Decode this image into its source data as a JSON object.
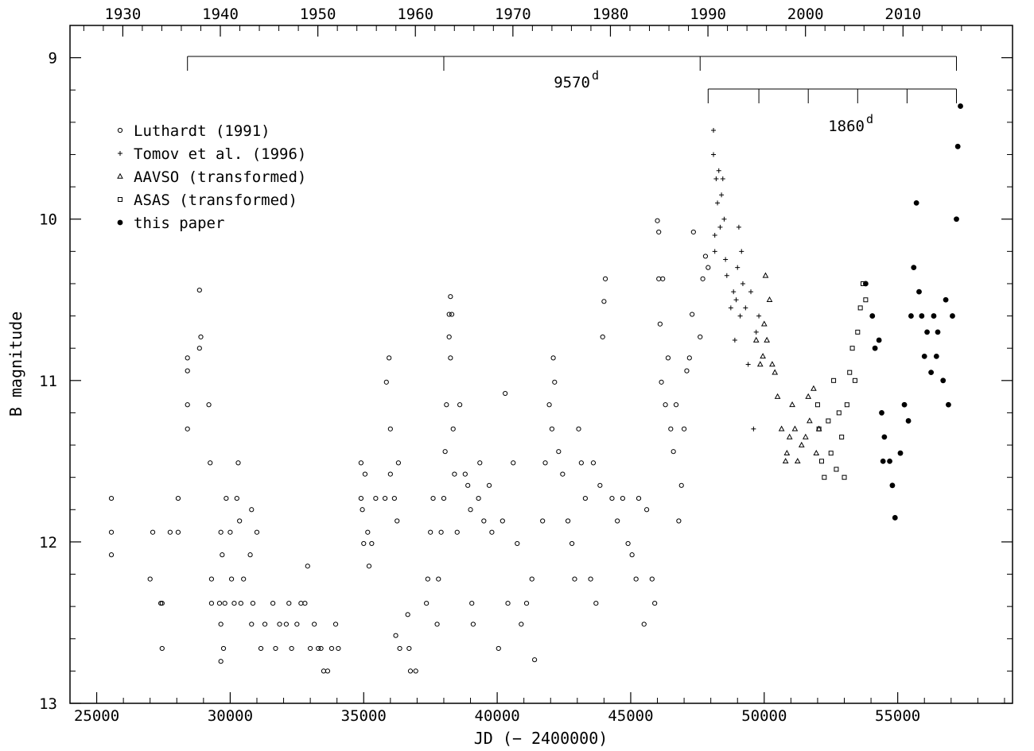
{
  "chart_data": {
    "type": "scatter",
    "xlabel": "JD (− 2400000)",
    "ylabel": "B magnitude",
    "xlim": [
      24000,
      59300
    ],
    "ylim": [
      8.8,
      13.0
    ],
    "y_inverted": true,
    "x_ticks_bottom": [
      25000,
      30000,
      35000,
      40000,
      45000,
      50000,
      55000
    ],
    "x_ticks_top_years": [
      1930,
      1940,
      1950,
      1960,
      1970,
      1980,
      1990,
      2000,
      2010
    ],
    "y_ticks": [
      9,
      10,
      11,
      12,
      13
    ],
    "legend_position": "top-left",
    "series": [
      {
        "name": "Luthardt (1991)",
        "marker": "open-circle",
        "points": [
          [
            25550,
            11.73
          ],
          [
            25550,
            11.94
          ],
          [
            25550,
            12.08
          ],
          [
            27000,
            12.23
          ],
          [
            27100,
            11.94
          ],
          [
            27400,
            12.38
          ],
          [
            27450,
            12.66
          ],
          [
            27450,
            12.38
          ],
          [
            27750,
            11.94
          ],
          [
            28050,
            11.73
          ],
          [
            28050,
            11.94
          ],
          [
            28400,
            10.86
          ],
          [
            28400,
            10.94
          ],
          [
            28400,
            11.15
          ],
          [
            28400,
            11.3
          ],
          [
            28850,
            10.44
          ],
          [
            28850,
            10.8
          ],
          [
            28900,
            10.73
          ],
          [
            29200,
            11.15
          ],
          [
            29250,
            11.51
          ],
          [
            29300,
            12.23
          ],
          [
            29300,
            12.38
          ],
          [
            29600,
            12.38
          ],
          [
            29650,
            12.51
          ],
          [
            29650,
            12.74
          ],
          [
            29650,
            11.94
          ],
          [
            29700,
            12.08
          ],
          [
            29750,
            12.66
          ],
          [
            29800,
            12.38
          ],
          [
            29850,
            11.73
          ],
          [
            30000,
            11.94
          ],
          [
            30050,
            12.23
          ],
          [
            30150,
            12.38
          ],
          [
            30250,
            11.73
          ],
          [
            30300,
            11.51
          ],
          [
            30350,
            11.87
          ],
          [
            30400,
            12.38
          ],
          [
            30500,
            12.23
          ],
          [
            30750,
            12.08
          ],
          [
            30800,
            11.8
          ],
          [
            30800,
            12.51
          ],
          [
            30850,
            12.38
          ],
          [
            31000,
            11.94
          ],
          [
            31150,
            12.66
          ],
          [
            31300,
            12.51
          ],
          [
            31600,
            12.38
          ],
          [
            31700,
            12.66
          ],
          [
            31850,
            12.51
          ],
          [
            32100,
            12.51
          ],
          [
            32200,
            12.38
          ],
          [
            32300,
            12.66
          ],
          [
            32500,
            12.51
          ],
          [
            32650,
            12.38
          ],
          [
            32800,
            12.38
          ],
          [
            32900,
            12.15
          ],
          [
            33000,
            12.66
          ],
          [
            33150,
            12.51
          ],
          [
            33300,
            12.66
          ],
          [
            33400,
            12.66
          ],
          [
            33500,
            12.8
          ],
          [
            33650,
            12.8
          ],
          [
            33800,
            12.66
          ],
          [
            33950,
            12.51
          ],
          [
            34050,
            12.66
          ],
          [
            34900,
            11.51
          ],
          [
            34900,
            11.73
          ],
          [
            34950,
            11.8
          ],
          [
            35000,
            12.01
          ],
          [
            35050,
            11.58
          ],
          [
            35150,
            11.94
          ],
          [
            35200,
            12.15
          ],
          [
            35300,
            12.01
          ],
          [
            35450,
            11.73
          ],
          [
            35800,
            11.73
          ],
          [
            35850,
            11.01
          ],
          [
            35950,
            10.86
          ],
          [
            36000,
            11.3
          ],
          [
            36000,
            11.58
          ],
          [
            36150,
            11.73
          ],
          [
            36200,
            12.58
          ],
          [
            36250,
            11.87
          ],
          [
            36300,
            11.51
          ],
          [
            36350,
            12.66
          ],
          [
            36650,
            12.45
          ],
          [
            36700,
            12.66
          ],
          [
            36750,
            12.8
          ],
          [
            36950,
            12.8
          ],
          [
            37350,
            12.38
          ],
          [
            37400,
            12.23
          ],
          [
            37500,
            11.94
          ],
          [
            37600,
            11.73
          ],
          [
            37750,
            12.51
          ],
          [
            37800,
            12.23
          ],
          [
            37900,
            11.94
          ],
          [
            38000,
            11.73
          ],
          [
            38050,
            11.44
          ],
          [
            38100,
            11.15
          ],
          [
            38200,
            10.59
          ],
          [
            38200,
            10.73
          ],
          [
            38250,
            10.48
          ],
          [
            38250,
            10.86
          ],
          [
            38300,
            10.59
          ],
          [
            38350,
            11.3
          ],
          [
            38400,
            11.58
          ],
          [
            38500,
            11.94
          ],
          [
            38600,
            11.15
          ],
          [
            38800,
            11.58
          ],
          [
            38900,
            11.65
          ],
          [
            39000,
            11.8
          ],
          [
            39050,
            12.38
          ],
          [
            39100,
            12.51
          ],
          [
            39300,
            11.73
          ],
          [
            39350,
            11.51
          ],
          [
            39500,
            11.87
          ],
          [
            39700,
            11.65
          ],
          [
            39800,
            11.94
          ],
          [
            40050,
            12.66
          ],
          [
            40200,
            11.87
          ],
          [
            40300,
            11.08
          ],
          [
            40400,
            12.38
          ],
          [
            40600,
            11.51
          ],
          [
            40750,
            12.01
          ],
          [
            40900,
            12.51
          ],
          [
            41100,
            12.38
          ],
          [
            41300,
            12.23
          ],
          [
            41400,
            12.73
          ],
          [
            41700,
            11.87
          ],
          [
            41800,
            11.51
          ],
          [
            41950,
            11.15
          ],
          [
            42050,
            11.3
          ],
          [
            42100,
            10.86
          ],
          [
            42150,
            11.01
          ],
          [
            42300,
            11.44
          ],
          [
            42450,
            11.58
          ],
          [
            42650,
            11.87
          ],
          [
            42800,
            12.01
          ],
          [
            42900,
            12.23
          ],
          [
            43050,
            11.3
          ],
          [
            43150,
            11.51
          ],
          [
            43300,
            11.73
          ],
          [
            43500,
            12.23
          ],
          [
            43600,
            11.51
          ],
          [
            43700,
            12.38
          ],
          [
            43850,
            11.65
          ],
          [
            43950,
            10.73
          ],
          [
            44000,
            10.51
          ],
          [
            44050,
            10.37
          ],
          [
            44300,
            11.73
          ],
          [
            44500,
            11.87
          ],
          [
            44700,
            11.73
          ],
          [
            44900,
            12.01
          ],
          [
            45050,
            12.08
          ],
          [
            45200,
            12.23
          ],
          [
            45300,
            11.73
          ],
          [
            45500,
            12.51
          ],
          [
            45600,
            11.8
          ],
          [
            45800,
            12.23
          ],
          [
            45900,
            12.38
          ],
          [
            46000,
            10.01
          ],
          [
            46050,
            10.08
          ],
          [
            46050,
            10.37
          ],
          [
            46100,
            10.65
          ],
          [
            46150,
            11.01
          ],
          [
            46200,
            10.37
          ],
          [
            46300,
            11.15
          ],
          [
            46400,
            10.86
          ],
          [
            46500,
            11.3
          ],
          [
            46600,
            11.44
          ],
          [
            46700,
            11.15
          ],
          [
            46800,
            11.87
          ],
          [
            46900,
            11.65
          ],
          [
            47000,
            11.3
          ],
          [
            47100,
            10.94
          ],
          [
            47200,
            10.86
          ],
          [
            47300,
            10.59
          ],
          [
            47350,
            10.08
          ],
          [
            47600,
            10.73
          ],
          [
            47700,
            10.37
          ],
          [
            47800,
            10.23
          ],
          [
            47900,
            10.3
          ]
        ]
      },
      {
        "name": "Tomov et al. (1996)",
        "marker": "plus",
        "points": [
          [
            48100,
            9.45
          ],
          [
            48100,
            9.6
          ],
          [
            48150,
            10.1
          ],
          [
            48150,
            10.2
          ],
          [
            48200,
            9.75
          ],
          [
            48250,
            9.9
          ],
          [
            48300,
            9.7
          ],
          [
            48350,
            10.05
          ],
          [
            48400,
            9.85
          ],
          [
            48450,
            9.75
          ],
          [
            48500,
            10.0
          ],
          [
            48550,
            10.25
          ],
          [
            48600,
            10.35
          ],
          [
            48750,
            10.55
          ],
          [
            48850,
            10.45
          ],
          [
            48900,
            10.75
          ],
          [
            48950,
            10.5
          ],
          [
            49000,
            10.3
          ],
          [
            49050,
            10.05
          ],
          [
            49100,
            10.6
          ],
          [
            49150,
            10.2
          ],
          [
            49200,
            10.4
          ],
          [
            49300,
            10.55
          ],
          [
            49400,
            10.9
          ],
          [
            49500,
            10.45
          ],
          [
            49600,
            11.3
          ],
          [
            49700,
            10.7
          ],
          [
            49800,
            10.6
          ]
        ]
      },
      {
        "name": "AAVSO (transformed)",
        "marker": "open-triangle",
        "points": [
          [
            49700,
            10.75
          ],
          [
            49850,
            10.9
          ],
          [
            49950,
            10.85
          ],
          [
            50000,
            10.65
          ],
          [
            50050,
            10.35
          ],
          [
            50100,
            10.75
          ],
          [
            50200,
            10.5
          ],
          [
            50300,
            10.9
          ],
          [
            50400,
            10.95
          ],
          [
            50500,
            11.1
          ],
          [
            50650,
            11.3
          ],
          [
            50800,
            11.5
          ],
          [
            50850,
            11.45
          ],
          [
            50950,
            11.35
          ],
          [
            51050,
            11.15
          ],
          [
            51150,
            11.3
          ],
          [
            51250,
            11.5
          ],
          [
            51400,
            11.4
          ],
          [
            51550,
            11.35
          ],
          [
            51650,
            11.1
          ],
          [
            51700,
            11.25
          ],
          [
            51850,
            11.05
          ],
          [
            51950,
            11.45
          ],
          [
            52050,
            11.3
          ]
        ]
      },
      {
        "name": "ASAS (transformed)",
        "marker": "open-square",
        "points": [
          [
            52000,
            11.15
          ],
          [
            52050,
            11.3
          ],
          [
            52150,
            11.5
          ],
          [
            52250,
            11.6
          ],
          [
            52400,
            11.25
          ],
          [
            52500,
            11.45
          ],
          [
            52600,
            11.0
          ],
          [
            52700,
            11.55
          ],
          [
            52800,
            11.2
          ],
          [
            52900,
            11.35
          ],
          [
            53000,
            11.6
          ],
          [
            53100,
            11.15
          ],
          [
            53200,
            10.95
          ],
          [
            53300,
            10.8
          ],
          [
            53400,
            11.0
          ],
          [
            53500,
            10.7
          ],
          [
            53600,
            10.55
          ],
          [
            53700,
            10.4
          ],
          [
            53800,
            10.5
          ]
        ]
      },
      {
        "name": "this paper",
        "marker": "filled-circle",
        "points": [
          [
            53800,
            10.4
          ],
          [
            54050,
            10.6
          ],
          [
            54150,
            10.8
          ],
          [
            54300,
            10.75
          ],
          [
            54400,
            11.2
          ],
          [
            54450,
            11.5
          ],
          [
            54500,
            11.35
          ],
          [
            54700,
            11.5
          ],
          [
            54800,
            11.65
          ],
          [
            54900,
            11.85
          ],
          [
            55100,
            11.45
          ],
          [
            55250,
            11.15
          ],
          [
            55400,
            11.25
          ],
          [
            55500,
            10.6
          ],
          [
            55600,
            10.3
          ],
          [
            55700,
            9.9
          ],
          [
            55800,
            10.45
          ],
          [
            55900,
            10.6
          ],
          [
            56000,
            10.85
          ],
          [
            56100,
            10.7
          ],
          [
            56250,
            10.95
          ],
          [
            56350,
            10.6
          ],
          [
            56450,
            10.85
          ],
          [
            56500,
            10.7
          ],
          [
            56700,
            11.0
          ],
          [
            56800,
            10.5
          ],
          [
            56900,
            11.15
          ],
          [
            57050,
            10.6
          ],
          [
            57200,
            10.0
          ],
          [
            57250,
            9.55
          ],
          [
            57350,
            9.3
          ]
        ]
      }
    ],
    "annotations": [
      {
        "label": "9570",
        "superscript": "d",
        "bracket_start": 28400,
        "bracket_ticks": [
          28400,
          38000,
          47600,
          57200
        ],
        "bracket_y": 8.8
      },
      {
        "label": "1860",
        "superscript": "d",
        "bracket_start": 47900,
        "bracket_ticks": [
          47900,
          49800,
          51650,
          53500,
          55350,
          57200
        ],
        "bracket_y": 9.02
      }
    ]
  }
}
